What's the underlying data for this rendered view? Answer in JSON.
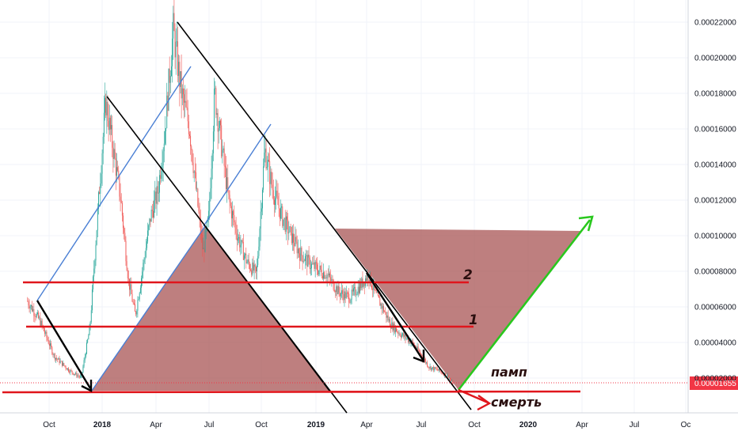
{
  "chart_data": {
    "type": "candlestick",
    "x_tick_labels": [
      "Oct",
      "2018",
      "Apr",
      "Jul",
      "Oct",
      "2019",
      "Apr",
      "Jul",
      "Oct",
      "2020",
      "Apr",
      "Jul",
      "Oc"
    ],
    "y_tick_labels": [
      "0.00022000",
      "0.00020000",
      "0.00018000",
      "0.00016000",
      "0.00014000",
      "0.00012000",
      "0.00010000",
      "0.00008000",
      "0.00006000",
      "0.00004000",
      "0.00002000"
    ],
    "ylim": [
      0,
      0.000228
    ],
    "current_price_label": "0.00001655",
    "current_price": 1.655e-05,
    "price_path": [
      [
        "2017-08-25",
        6.3e-05
      ],
      [
        "2017-09-15",
        5.2e-05
      ],
      [
        "2017-10-10",
        3.2e-05
      ],
      [
        "2017-11-05",
        2.4e-05
      ],
      [
        "2017-11-25",
        2e-05
      ],
      [
        "2017-12-10",
        4.8e-05
      ],
      [
        "2017-12-25",
        0.00012
      ],
      [
        "2018-01-06",
        0.000175
      ],
      [
        "2018-01-18",
        0.00015
      ],
      [
        "2018-02-01",
        0.00012
      ],
      [
        "2018-02-14",
        7.5e-05
      ],
      [
        "2018-02-26",
        5.5e-05
      ],
      [
        "2018-03-10",
        8e-05
      ],
      [
        "2018-03-24",
        0.00011
      ],
      [
        "2018-04-06",
        0.000125
      ],
      [
        "2018-04-18",
        0.00016
      ],
      [
        "2018-05-02",
        0.000215
      ],
      [
        "2018-05-16",
        0.00018
      ],
      [
        "2018-05-30",
        0.00016
      ],
      [
        "2018-06-12",
        0.00012
      ],
      [
        "2018-06-22",
        9e-05
      ],
      [
        "2018-07-02",
        0.00011
      ],
      [
        "2018-07-12",
        0.00018
      ],
      [
        "2018-07-24",
        0.00015
      ],
      [
        "2018-08-05",
        0.00012
      ],
      [
        "2018-08-20",
        0.0001
      ],
      [
        "2018-09-05",
        8.5e-05
      ],
      [
        "2018-09-22",
        7.8e-05
      ],
      [
        "2018-10-06",
        0.000148
      ],
      [
        "2018-10-20",
        0.000125
      ],
      [
        "2018-11-05",
        0.00011
      ],
      [
        "2018-11-20",
        0.0001
      ],
      [
        "2018-12-05",
        9e-05
      ],
      [
        "2018-12-25",
        8.3e-05
      ],
      [
        "2019-01-20",
        7.8e-05
      ],
      [
        "2019-02-10",
        6.8e-05
      ],
      [
        "2019-03-01",
        6.5e-05
      ],
      [
        "2019-03-20",
        7.2e-05
      ],
      [
        "2019-04-02",
        7.8e-05
      ],
      [
        "2019-04-12",
        6.8e-05
      ],
      [
        "2019-04-25",
        6e-05
      ],
      [
        "2019-05-10",
        5e-05
      ],
      [
        "2019-05-25",
        4.5e-05
      ],
      [
        "2019-06-15",
        4e-05
      ],
      [
        "2019-07-01",
        3.3e-05
      ],
      [
        "2019-07-15",
        2.6e-05
      ],
      [
        "2019-08-01",
        2.4e-05
      ],
      [
        "2019-08-15",
        2.1e-05
      ],
      [
        "2019-08-25",
        1.655e-05
      ]
    ],
    "horizontal_levels": [
      {
        "label": "2",
        "y": 7.3e-05
      },
      {
        "label": "1",
        "y": 4.9e-05
      },
      {
        "label": "",
        "y": 9e-06
      }
    ],
    "annotations": [
      "2",
      "1",
      "памп",
      "смерть"
    ],
    "colors": {
      "up": "#26a69a",
      "down": "#ef5350",
      "level": "#e0161c",
      "channel_blue": "#4a7fd4",
      "trend_black": "#000000",
      "triangle_fill": "#a85454",
      "pump_green": "#29c81e",
      "price_tag": "#f23645"
    }
  },
  "annotations_text": {
    "level2": "2",
    "level1": "1",
    "pump": "памп",
    "death": "смерть"
  }
}
